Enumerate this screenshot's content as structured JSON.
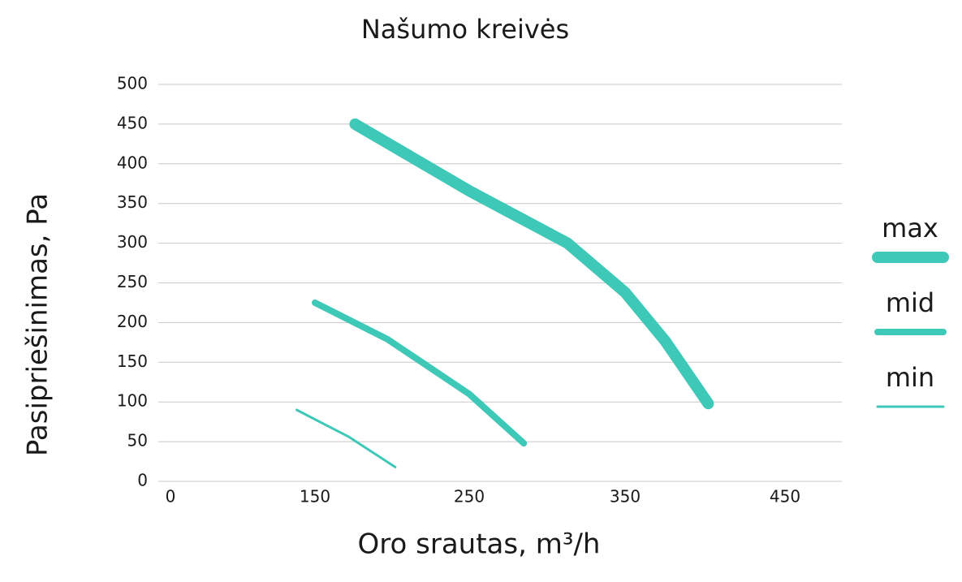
{
  "chart_data": {
    "type": "line",
    "title": "Našumo kreivės",
    "x_label": "Oro srautas, m³/h",
    "y_label": "Pasipriešinimas, Pa",
    "xlim": [
      -13,
      485
    ],
    "xticks": [
      0,
      150,
      250,
      350,
      450
    ],
    "ylim": [
      0,
      500
    ],
    "yticks": [
      0,
      50,
      100,
      150,
      200,
      250,
      300,
      350,
      400,
      450,
      500
    ],
    "grid": true,
    "legend": "right",
    "series": [
      {
        "name": "max",
        "color": "#3ec8b8",
        "line_width": 14,
        "x": [
          176,
          250,
          313,
          350,
          375,
          402
        ],
        "values": [
          450,
          366,
          300,
          238,
          177,
          98
        ]
      },
      {
        "name": "mid",
        "color": "#3ec8b8",
        "line_width": 8,
        "x": [
          150,
          197,
          250,
          285
        ],
        "values": [
          225,
          179,
          110,
          48
        ]
      },
      {
        "name": "min",
        "color": "#3ec8b8",
        "line_width": 3,
        "x": [
          131,
          172,
          202
        ],
        "values": [
          90,
          56,
          18
        ]
      }
    ]
  }
}
